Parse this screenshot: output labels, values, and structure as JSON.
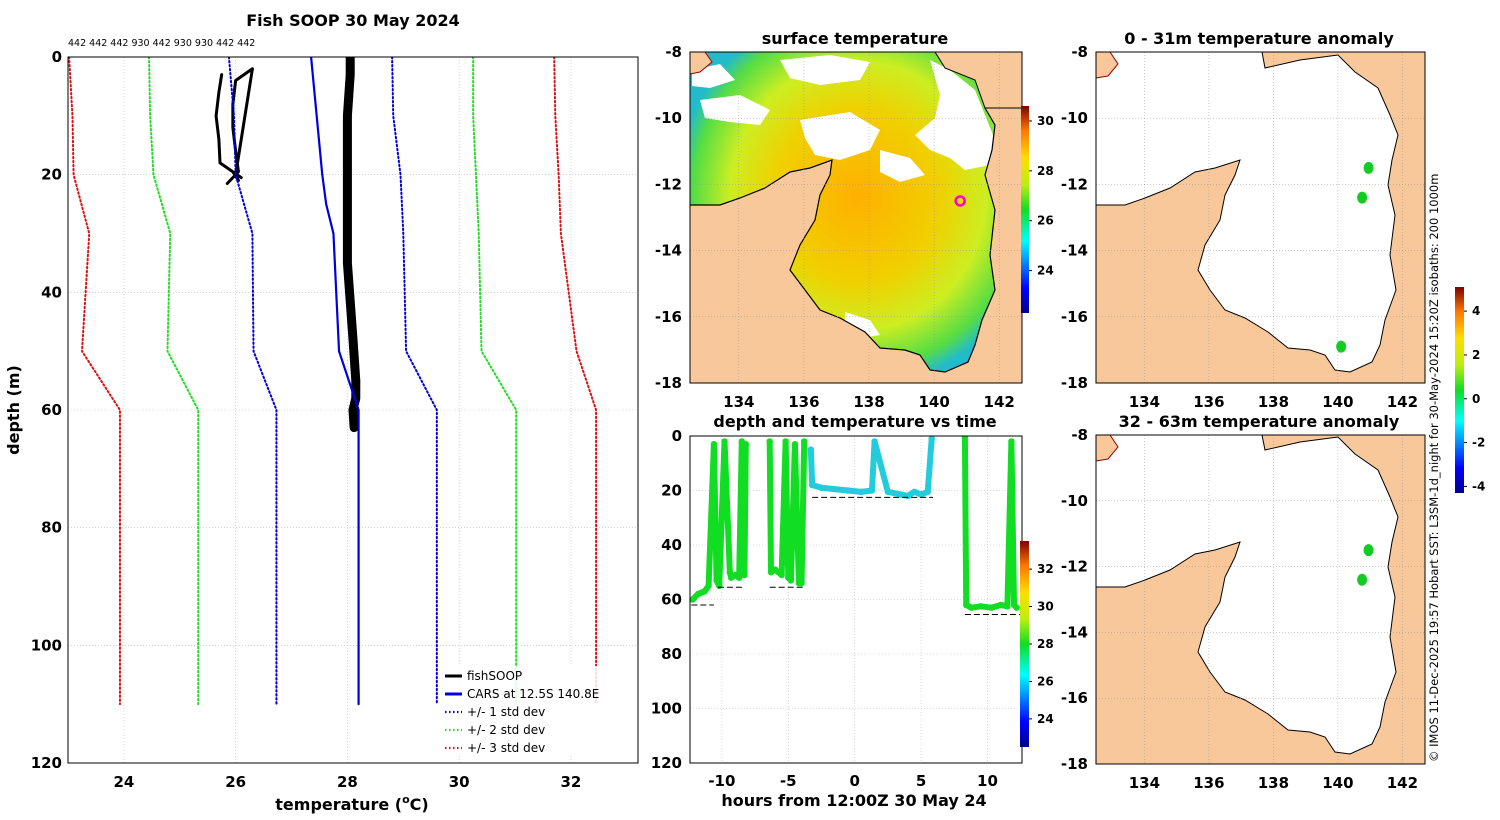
{
  "colors": {
    "land": "#f8c89a",
    "fishsoop": "#000000",
    "cars": "#0000dd",
    "std1": "#0000dd",
    "std2": "#22dd22",
    "std3": "#dd1111",
    "depth_green": "#11dd22",
    "depth_cyan": "#22ccdd",
    "grid": "#bbbbbb"
  },
  "chart_data": [
    {
      "id": "profile",
      "type": "line",
      "title": "Fish SOOP 30 May 2024",
      "xlabel": "temperature (oC)",
      "xlabel_main": "temperature (",
      "xlabel_sup": "o",
      "xlabel_tail": "C)",
      "ylabel": "depth (m)",
      "xlim": [
        23,
        33.2
      ],
      "ylim": [
        0,
        120
      ],
      "y_reversed": true,
      "xticks": [
        24,
        26,
        28,
        30,
        32
      ],
      "yticks": [
        0,
        20,
        40,
        60,
        80,
        100,
        120
      ],
      "top_annotation": "442 442 442 930 442 930 930 442 442",
      "series": [
        {
          "name": "fishSOOP",
          "style": "solid",
          "color": "#000000",
          "x": [
            25.75,
            25.7,
            25.65,
            25.7,
            25.72,
            26.1,
            25.95,
            26.05,
            26.0,
            26.3,
            26.0,
            25.95,
            25.95,
            26.0,
            26.05,
            25.85
          ],
          "depth": [
            3,
            6,
            10,
            14,
            18,
            20.5,
            19.5,
            21,
            20,
            2,
            4,
            8,
            12,
            16,
            19.5,
            21.5
          ]
        },
        {
          "name": "fishSOOP2",
          "style": "thick",
          "color": "#000000",
          "x": [
            28.05,
            28.05,
            28.0,
            28.0,
            28.0,
            28.1,
            28.15,
            28.15,
            28.1,
            28.12
          ],
          "depth": [
            0,
            3,
            10,
            20,
            35,
            48,
            55,
            58,
            60,
            63
          ]
        },
        {
          "name": "CARS at 12.5S 140.8E",
          "style": "solid",
          "color": "#0000dd",
          "x": [
            27.35,
            27.45,
            27.55,
            27.62,
            27.75,
            27.85,
            28.2,
            28.2
          ],
          "depth": [
            0,
            10,
            20,
            25,
            30,
            50,
            60,
            110
          ]
        },
        {
          "name": "+/- 1 std dev",
          "style": "dot",
          "color": "#0000dd",
          "x": [
            25.88,
            25.97,
            26.0,
            26.3,
            26.32,
            26.73,
            26.73
          ],
          "depth": [
            0,
            10,
            20,
            30,
            50,
            60,
            110
          ]
        },
        {
          "name": "+/- 1 std dev (upper)",
          "style": "dot",
          "color": "#0000dd",
          "x": [
            28.8,
            28.82,
            28.95,
            29.0,
            29.05,
            29.6,
            29.6
          ],
          "depth": [
            0,
            10,
            20,
            30,
            50,
            60,
            110
          ]
        },
        {
          "name": "+/- 2 std dev",
          "style": "dot",
          "color": "#22dd22",
          "x": [
            24.45,
            24.47,
            24.53,
            24.83,
            24.78,
            25.33,
            25.33
          ],
          "depth": [
            0,
            10,
            20,
            30,
            50,
            60,
            110
          ]
        },
        {
          "name": "+/- 2 std dev (upper)",
          "style": "dot",
          "color": "#22dd22",
          "x": [
            30.25,
            30.25,
            30.3,
            30.35,
            30.4,
            31.02,
            31.02
          ],
          "depth": [
            0,
            10,
            20,
            30,
            50,
            60,
            110
          ]
        },
        {
          "name": "+/- 3 std dev",
          "style": "dot",
          "color": "#dd1111",
          "x": [
            23.02,
            23.08,
            23.1,
            23.38,
            23.25,
            23.93,
            23.93
          ],
          "depth": [
            0,
            10,
            20,
            30,
            50,
            60,
            110
          ]
        },
        {
          "name": "+/- 3 std dev (upper)",
          "style": "dot",
          "color": "#dd1111",
          "x": [
            31.7,
            31.72,
            31.78,
            31.82,
            32.1,
            32.45,
            32.45
          ],
          "depth": [
            0,
            10,
            20,
            30,
            50,
            60,
            110
          ]
        }
      ],
      "legend": [
        {
          "label": "fishSOOP",
          "color": "#000000",
          "style": "solid"
        },
        {
          "label": "CARS at 12.5S 140.8E",
          "color": "#0000dd",
          "style": "solid"
        },
        {
          "label": "+/- 1 std dev",
          "color": "#0000dd",
          "style": "dot"
        },
        {
          "label": "+/- 2 std dev",
          "color": "#22dd22",
          "style": "dot"
        },
        {
          "label": "+/- 3 std dev",
          "color": "#dd1111",
          "style": "dot"
        }
      ]
    },
    {
      "id": "sst",
      "type": "heatmap",
      "title": "surface temperature",
      "xlim": [
        132.5,
        142.7
      ],
      "ylim": [
        -18,
        -8
      ],
      "xticks": [
        134,
        136,
        138,
        140,
        142
      ],
      "yticks": [
        -8,
        -10,
        -12,
        -14,
        -16,
        -18
      ],
      "colorbar": {
        "min": 22.3,
        "max": 30.6,
        "ticks": [
          24,
          26,
          28,
          30
        ]
      },
      "marker": {
        "lon": 140.8,
        "lat": -12.5,
        "color": "#ff00cc"
      }
    },
    {
      "id": "depthtime",
      "type": "scatter",
      "title": "depth and temperature vs time",
      "xlabel": "hours from 12:00Z 30 May 24",
      "xlim": [
        -12.4,
        12.6
      ],
      "ylim": [
        0,
        120
      ],
      "y_reversed": true,
      "xticks": [
        -10,
        -5,
        0,
        5,
        10
      ],
      "yticks": [
        0,
        20,
        40,
        60,
        80,
        100,
        120
      ],
      "colorbar": {
        "min": 22.5,
        "max": 33.5,
        "ticks": [
          24,
          26,
          28,
          30,
          32
        ]
      },
      "series": [
        {
          "name": "casts-1",
          "color": "#11dd22",
          "x": [
            -12.2,
            -11.8,
            -11.3,
            -11.0,
            -10.6,
            -10.4,
            -10.2,
            -9.8,
            -9.4,
            -9.3,
            -9.0,
            -8.7,
            -8.5,
            -8.3,
            -8.2
          ],
          "depth": [
            60,
            58,
            57,
            55,
            3,
            53,
            55,
            2,
            50,
            52,
            51,
            52,
            2,
            51,
            3
          ]
        },
        {
          "name": "casts-2",
          "color": "#11dd22",
          "x": [
            -6.4,
            -6.3,
            -6.0,
            -5.5,
            -5.2,
            -5.0,
            -4.8,
            -4.5,
            -4.2,
            -4.0,
            -3.8
          ],
          "depth": [
            2,
            50,
            49,
            51,
            2,
            52,
            53,
            3,
            54,
            54,
            2
          ]
        },
        {
          "name": "drift",
          "color": "#22ccdd",
          "x": [
            -3.3,
            -3.2,
            -2.5,
            -1.5,
            -0.5,
            0.5,
            1.3,
            1.5,
            2.5,
            3.5,
            4.0,
            4.5,
            5.0,
            5.5,
            5.8
          ],
          "depth": [
            5,
            18,
            19,
            19.5,
            20,
            20.5,
            20,
            2,
            20.5,
            21.5,
            22,
            20.5,
            21.5,
            20.5,
            1
          ]
        },
        {
          "name": "casts-3",
          "color": "#11dd22",
          "x": [
            8.3,
            8.4,
            8.8,
            9.5,
            10.3,
            11.0,
            11.5,
            11.8,
            12.0,
            12.2
          ],
          "depth": [
            0,
            62,
            63,
            62.5,
            63,
            62,
            62.5,
            2,
            62,
            63
          ]
        }
      ],
      "bottom_lines": [
        {
          "x": [
            -12.3,
            -10.6
          ],
          "depth": 62
        },
        {
          "x": [
            -10.3,
            -8.4
          ],
          "depth": 55.5
        },
        {
          "x": [
            -6.4,
            -3.9
          ],
          "depth": 55.5
        },
        {
          "x": [
            -3.2,
            5.9
          ],
          "depth": 22.5
        },
        {
          "x": [
            8.3,
            12.5
          ],
          "depth": 65.5
        }
      ]
    },
    {
      "id": "anom1",
      "type": "heatmap",
      "title": "0 - 31m temperature anomaly",
      "xlim": [
        132.5,
        142.7
      ],
      "ylim": [
        -18,
        -8
      ],
      "xticks": [
        134,
        136,
        138,
        140,
        142
      ],
      "yticks": [
        -8,
        -10,
        -12,
        -14,
        -16,
        -18
      ],
      "colorbar": {
        "min": -4.3,
        "max": 5.1,
        "ticks": [
          -4,
          -2,
          0,
          2,
          4
        ]
      },
      "blobs": [
        {
          "lon": 140.95,
          "lat": -11.5
        },
        {
          "lon": 140.75,
          "lat": -12.4
        },
        {
          "lon": 140.1,
          "lat": -16.9
        }
      ]
    },
    {
      "id": "anom2",
      "type": "heatmap",
      "title": "32 - 63m temperature anomaly",
      "xlim": [
        132.5,
        142.7
      ],
      "ylim": [
        -18,
        -8
      ],
      "xticks": [
        134,
        136,
        138,
        140,
        142
      ],
      "yticks": [
        -8,
        -10,
        -12,
        -14,
        -16,
        -18
      ],
      "blobs": [
        {
          "lon": 140.95,
          "lat": -11.5
        },
        {
          "lon": 140.75,
          "lat": -12.4
        }
      ]
    }
  ],
  "side_caption": "© IMOS 11-Dec-2025 19:57 Hobart SST: L3SM-1d_night for 30-May-2024 15:20Z  isobaths: 200  1000m"
}
